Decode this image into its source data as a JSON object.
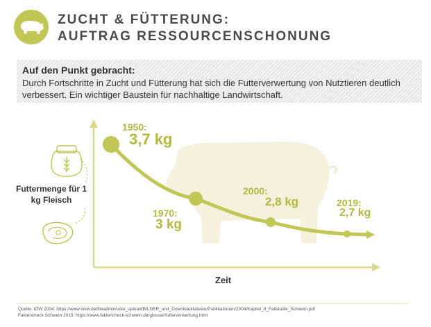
{
  "header": {
    "title_line1": "ZUCHT & FÜTTERUNG:",
    "title_line2": "AUFTRAG RESSOURCENSCHONUNG",
    "icon": "pig-icon"
  },
  "summary": {
    "heading": "Auf den Punkt gebracht:",
    "text": "Durch Fortschritte in Zucht und Fütterung hat sich die Futterverwertung von Nutztieren deutlich verbessert. Ein wichtiger Baustein für nachhaltige Landwirtschaft."
  },
  "axes": {
    "ylabel": "Futtermenge für 1 kg Fleisch",
    "xlabel": "Zeit"
  },
  "chart_data": {
    "type": "line",
    "title": "",
    "xlabel": "Zeit",
    "ylabel": "Futtermenge für 1 kg Fleisch",
    "series": [
      {
        "name": "Futtermenge",
        "points": [
          {
            "year": "1950:",
            "label": "3,7 kg",
            "value": 3.7
          },
          {
            "year": "1970:",
            "label": "3 kg",
            "value": 3.0
          },
          {
            "year": "2000:",
            "label": "2,8 kg",
            "value": 2.8
          },
          {
            "year": "2019:",
            "label": "2,7 kg",
            "value": 2.7
          }
        ]
      }
    ]
  },
  "colors": {
    "accent": "#c2c654",
    "accent_dark": "#b5b83e",
    "pig": "#f5f1dd",
    "axis": "#d8d98a"
  },
  "source": {
    "line1": "Quelle: IÖW 2004: https://www.ioew.de/fileadmin/user_upload/BILDER_und_Downloaddateien/Publikationen/2004/Kapitel_9_Fallstudie_Schwein.pdf",
    "line2": "Faktencheck Schwein 2015: https://www.faktencheck-schwein.de/glossar/futterverwertung.html"
  }
}
